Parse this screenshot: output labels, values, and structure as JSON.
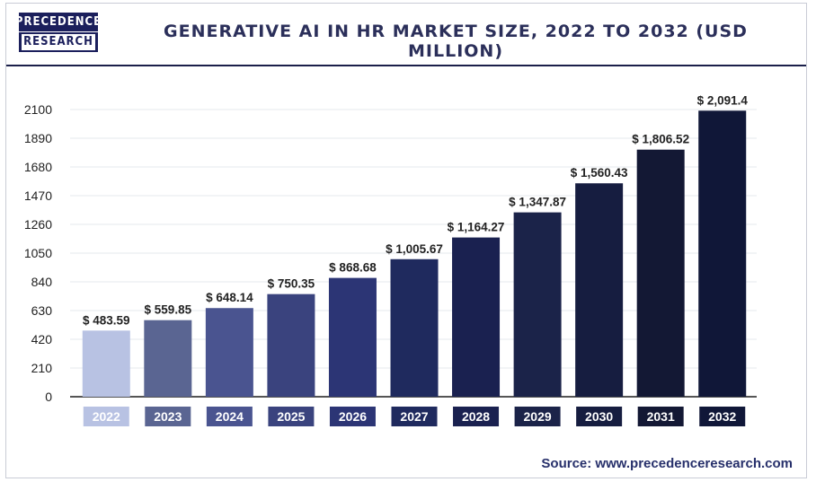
{
  "header": {
    "logo_line1": "PRECEDENCE",
    "logo_line2": "RESEARCH",
    "title": "GENERATIVE AI IN HR MARKET SIZE, 2022 TO 2032 (USD MILLION)"
  },
  "footer": {
    "source": "Source: www.precedenceresearch.com"
  },
  "chart_data": {
    "type": "bar",
    "title": "GENERATIVE AI IN HR MARKET SIZE, 2022 TO 2032 (USD MILLION)",
    "xlabel": "",
    "ylabel": "",
    "ylim": [
      0,
      2100
    ],
    "yticks": [
      0,
      210,
      420,
      630,
      840,
      1050,
      1260,
      1470,
      1680,
      1890,
      2100
    ],
    "grid": true,
    "categories": [
      "2022",
      "2023",
      "2024",
      "2025",
      "2026",
      "2027",
      "2028",
      "2029",
      "2030",
      "2031",
      "2032"
    ],
    "values": [
      483.59,
      559.85,
      648.14,
      750.35,
      868.68,
      1005.67,
      1164.27,
      1347.87,
      1560.43,
      1806.52,
      2091.4
    ],
    "data_labels": [
      "$ 483.59",
      "$ 559.85",
      "$ 648.14",
      "$ 750.35",
      "$ 868.68",
      "$ 1,005.67",
      "$ 1,164.27",
      "$ 1,347.87",
      "$ 1,560.43",
      "$ 1,806.52",
      "$ 2,091.4"
    ],
    "colors": [
      "#b8c2e3",
      "#5a6592",
      "#4a5490",
      "#3a437e",
      "#2c3575",
      "#1f2a5e",
      "#1a2150",
      "#1b2349",
      "#161d40",
      "#131834",
      "#101738"
    ]
  }
}
